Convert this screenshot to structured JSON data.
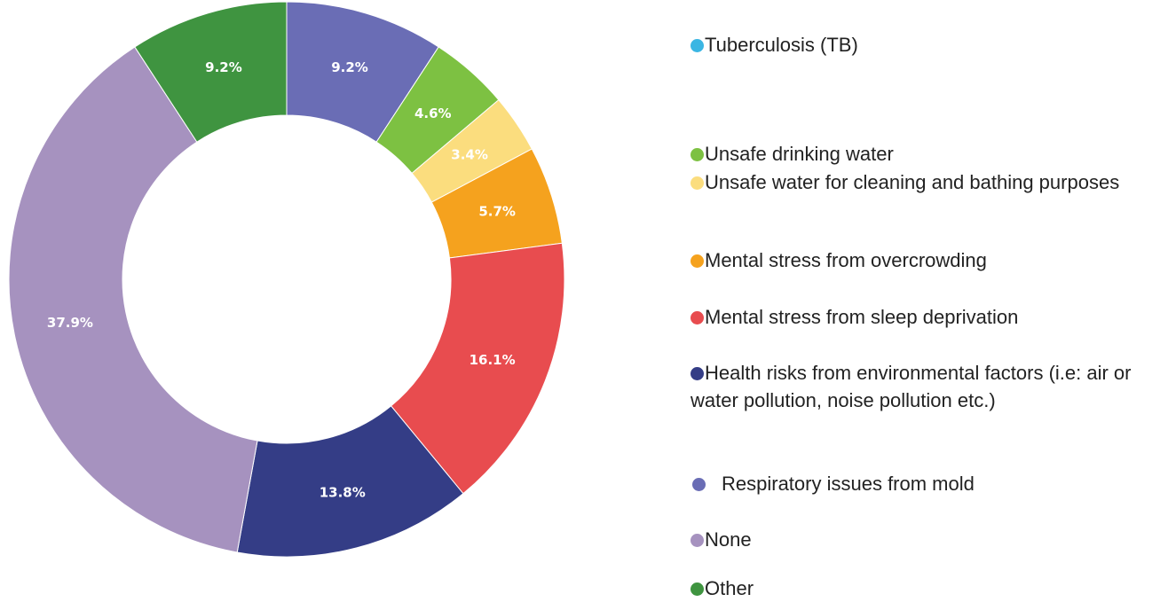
{
  "chart_data": {
    "type": "pie",
    "categories": [
      "Tuberculosis (TB)",
      "Unsafe drinking water",
      "Unsafe water for cleaning and bathing purposes",
      "Mental stress from overcrowding",
      "Mental stress from sleep deprivation",
      "Health risks from environmental factors (i.e: air or water pollution, noise pollution etc.)",
      "Respiratory issues from mold",
      "None",
      "Other"
    ],
    "values": [
      0,
      4.6,
      3.4,
      5.7,
      16.1,
      13.8,
      9.2,
      37.9,
      9.2
    ],
    "value_labels": [
      null,
      "4.6%",
      "3.4%",
      "5.7%",
      "16.1%",
      "13.8%",
      "9.2%",
      "37.9%",
      "9.2%"
    ],
    "colors": [
      "#3bb6e3",
      "#7dc142",
      "#fbdd7e",
      "#f5a21e",
      "#e84c4f",
      "#343d86",
      "#6a6db5",
      "#a692bf",
      "#3f9440"
    ],
    "donut": true
  }
}
